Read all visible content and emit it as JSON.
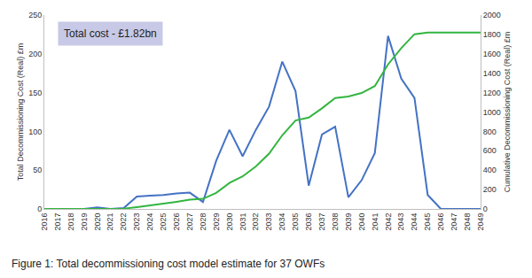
{
  "chart_data": {
    "type": "line",
    "annotations": [
      "Total cost - £1.82bn"
    ],
    "caption": "Figure 1: Total decommissioning cost model estimate for 37 OWFs",
    "y_label": "Total Decommissioning Cost (Real) £m",
    "y2_label": "Cumulative Decommissioning Cost (Real) £m",
    "categories": [
      "2016",
      "2017",
      "2018",
      "2019",
      "2020",
      "2021",
      "2022",
      "2023",
      "2024",
      "2025",
      "2026",
      "2027",
      "2028",
      "2029",
      "2030",
      "2031",
      "2032",
      "2033",
      "2034",
      "2035",
      "2036",
      "2037",
      "2038",
      "2039",
      "2040",
      "2041",
      "2042",
      "2043",
      "2044",
      "2045",
      "2046",
      "2047",
      "2048",
      "2049"
    ],
    "series": [
      {
        "color": "#4472c4",
        "values": [
          0,
          0,
          0,
          0,
          2,
          0,
          1,
          16,
          17,
          18,
          20,
          21,
          9,
          62,
          102,
          68,
          102,
          132,
          190,
          152,
          30,
          96,
          106,
          15,
          37,
          72,
          223,
          168,
          143,
          18,
          0,
          0,
          0,
          0
        ]
      },
      {
        "color": "#33b540",
        "axis": "y2",
        "values": [
          0,
          0,
          0,
          0,
          2,
          2,
          3,
          19,
          36,
          54,
          74,
          95,
          104,
          166,
          268,
          336,
          438,
          570,
          760,
          912,
          942,
          1038,
          1144,
          1159,
          1196,
          1268,
          1491,
          1659,
          1802,
          1820,
          1820,
          1820,
          1820,
          1820
        ]
      }
    ],
    "ylim": [
      0,
      250
    ],
    "yticks": [
      0,
      50,
      100,
      150,
      200,
      250
    ],
    "y2lim": [
      0,
      2000
    ],
    "y2ticks": [
      0,
      200,
      400,
      600,
      800,
      1000,
      1200,
      1400,
      1600,
      1800,
      2000
    ],
    "grid": false
  }
}
